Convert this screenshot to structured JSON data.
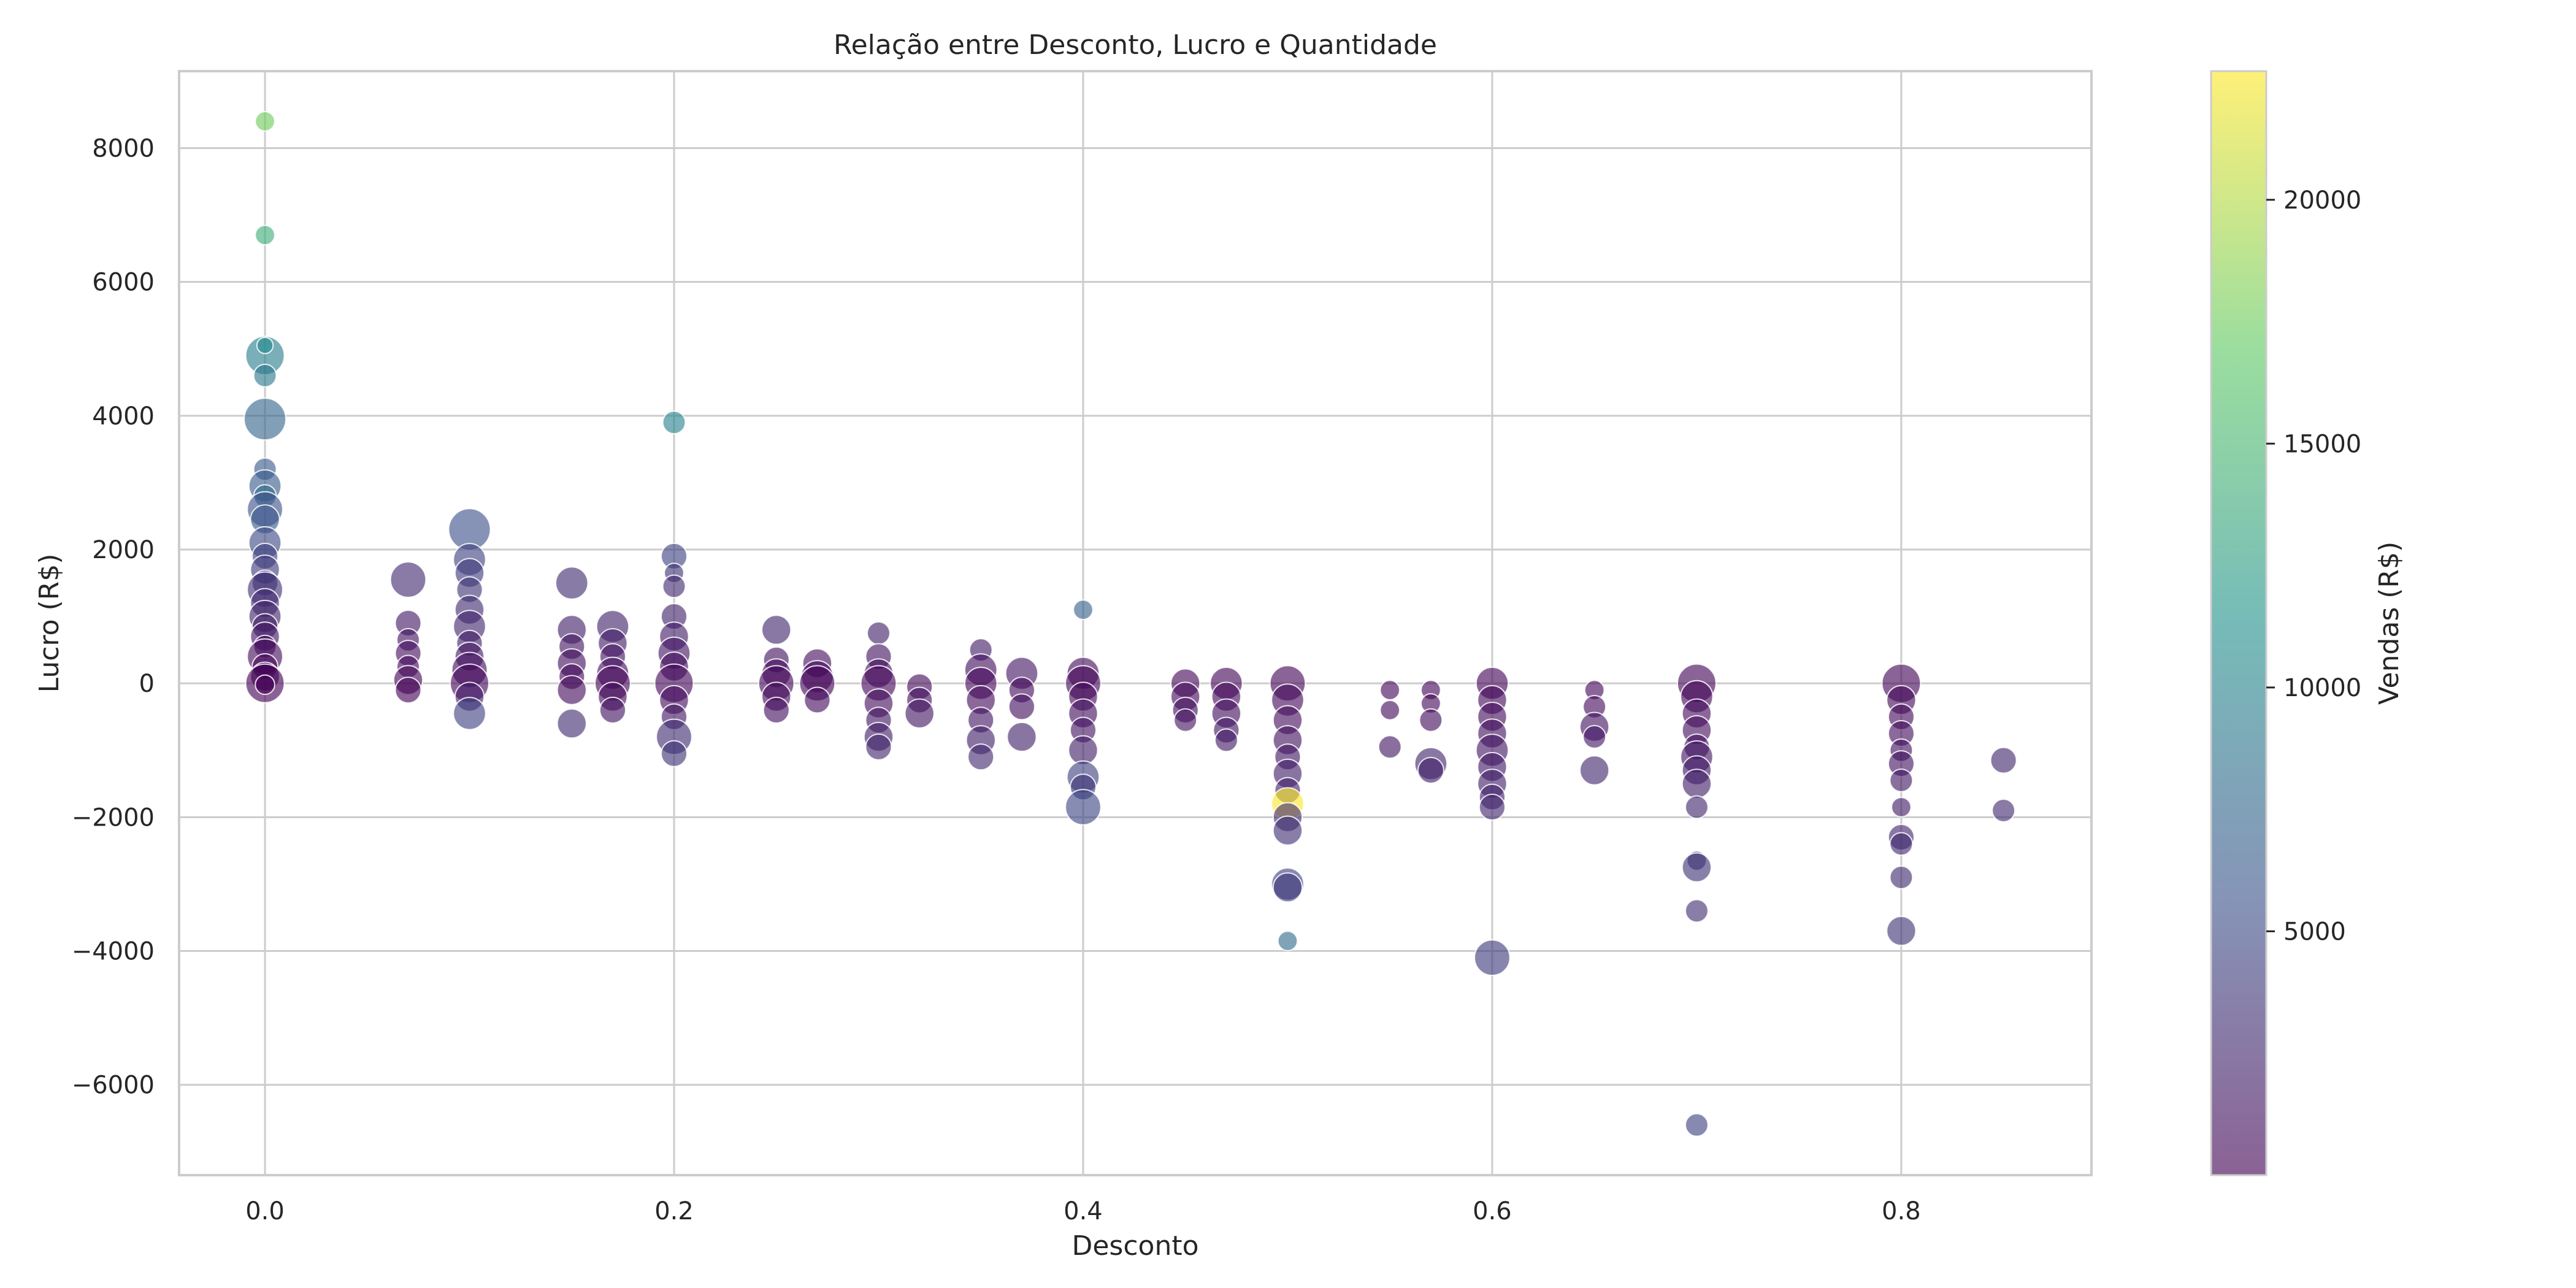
{
  "chart_data": {
    "type": "scatter",
    "title": "Relação entre Desconto, Lucro e Quantidade",
    "xlabel": "Desconto",
    "ylabel": "Lucro (R$)",
    "xlim": [
      -0.042,
      0.893
    ],
    "ylim": [
      -7350,
      9150
    ],
    "xticks": [
      0.0,
      0.2,
      0.4,
      0.6,
      0.8
    ],
    "xtick_labels": [
      "0.0",
      "0.2",
      "0.4",
      "0.6",
      "0.8"
    ],
    "yticks": [
      -6000,
      -4000,
      -2000,
      0,
      2000,
      4000,
      6000,
      8000
    ],
    "ytick_labels": [
      "−6000",
      "−4000",
      "−2000",
      "0",
      "2000",
      "4000",
      "6000",
      "8000"
    ],
    "grid": true,
    "size_encoding": "Quantidade",
    "colorbar": {
      "label": "Vendas (R$)",
      "range": [
        0,
        22638
      ],
      "ticks": [
        5000,
        10000,
        15000,
        20000
      ],
      "tick_labels": [
        "5000",
        "10000",
        "15000",
        "20000"
      ],
      "colormap": "viridis",
      "colors": [
        "#440154",
        "#3b528b",
        "#21918c",
        "#5ec962",
        "#fde725"
      ]
    },
    "points": [
      {
        "x": 0.0,
        "y": 8400,
        "q": 3,
        "c": 17500
      },
      {
        "x": 0.0,
        "y": 6700,
        "q": 3,
        "c": 14000
      },
      {
        "x": 0.0,
        "y": 4900,
        "q": 9,
        "c": 9500
      },
      {
        "x": 0.0,
        "y": 5050,
        "q": 2,
        "c": 11000
      },
      {
        "x": 0.0,
        "y": 4600,
        "q": 4,
        "c": 9000
      },
      {
        "x": 0.0,
        "y": 3950,
        "q": 10,
        "c": 7500
      },
      {
        "x": 0.0,
        "y": 3200,
        "q": 4,
        "c": 6500
      },
      {
        "x": 0.0,
        "y": 2950,
        "q": 7,
        "c": 6500
      },
      {
        "x": 0.0,
        "y": 2800,
        "q": 4,
        "c": 8000
      },
      {
        "x": 0.0,
        "y": 2600,
        "q": 8,
        "c": 5500
      },
      {
        "x": 0.0,
        "y": 2450,
        "q": 6,
        "c": 6000
      },
      {
        "x": 0.0,
        "y": 2100,
        "q": 7,
        "c": 5000
      },
      {
        "x": 0.0,
        "y": 1900,
        "q": 5,
        "c": 4500
      },
      {
        "x": 0.0,
        "y": 1700,
        "q": 6,
        "c": 4000
      },
      {
        "x": 0.0,
        "y": 1500,
        "q": 5,
        "c": 3500
      },
      {
        "x": 0.0,
        "y": 1400,
        "q": 8,
        "c": 3200
      },
      {
        "x": 0.0,
        "y": 1200,
        "q": 6,
        "c": 2800
      },
      {
        "x": 0.0,
        "y": 1000,
        "q": 7,
        "c": 2400
      },
      {
        "x": 0.0,
        "y": 850,
        "q": 5,
        "c": 2000
      },
      {
        "x": 0.0,
        "y": 700,
        "q": 6,
        "c": 1500
      },
      {
        "x": 0.0,
        "y": 550,
        "q": 4,
        "c": 1000
      },
      {
        "x": 0.0,
        "y": 400,
        "q": 8,
        "c": 800
      },
      {
        "x": 0.0,
        "y": 250,
        "q": 5,
        "c": 500
      },
      {
        "x": 0.0,
        "y": 100,
        "q": 6,
        "c": 300
      },
      {
        "x": 0.0,
        "y": 0,
        "q": 9,
        "c": 100
      },
      {
        "x": 0.0,
        "y": -20,
        "q": 3,
        "c": 50
      },
      {
        "x": 0.07,
        "y": 1550,
        "q": 8,
        "c": 2800
      },
      {
        "x": 0.07,
        "y": 900,
        "q": 5,
        "c": 1600
      },
      {
        "x": 0.07,
        "y": 650,
        "q": 4,
        "c": 1300
      },
      {
        "x": 0.07,
        "y": 450,
        "q": 5,
        "c": 900
      },
      {
        "x": 0.07,
        "y": 250,
        "q": 4,
        "c": 600
      },
      {
        "x": 0.07,
        "y": 50,
        "q": 6,
        "c": 300
      },
      {
        "x": 0.07,
        "y": -100,
        "q": 5,
        "c": 200
      },
      {
        "x": 0.1,
        "y": 2300,
        "q": 10,
        "c": 5500
      },
      {
        "x": 0.1,
        "y": 1850,
        "q": 7,
        "c": 4500
      },
      {
        "x": 0.1,
        "y": 1650,
        "q": 6,
        "c": 4000
      },
      {
        "x": 0.1,
        "y": 1400,
        "q": 5,
        "c": 3500
      },
      {
        "x": 0.1,
        "y": 1100,
        "q": 6,
        "c": 3000
      },
      {
        "x": 0.1,
        "y": 850,
        "q": 7,
        "c": 2500
      },
      {
        "x": 0.1,
        "y": 600,
        "q": 5,
        "c": 2000
      },
      {
        "x": 0.1,
        "y": 400,
        "q": 6,
        "c": 1500
      },
      {
        "x": 0.1,
        "y": 200,
        "q": 8,
        "c": 1000
      },
      {
        "x": 0.1,
        "y": 0,
        "q": 9,
        "c": 400
      },
      {
        "x": 0.1,
        "y": -200,
        "q": 6,
        "c": 1800
      },
      {
        "x": 0.1,
        "y": -450,
        "q": 7,
        "c": 4500
      },
      {
        "x": 0.15,
        "y": 1500,
        "q": 7,
        "c": 3000
      },
      {
        "x": 0.15,
        "y": 800,
        "q": 6,
        "c": 2000
      },
      {
        "x": 0.15,
        "y": 550,
        "q": 5,
        "c": 1500
      },
      {
        "x": 0.15,
        "y": 300,
        "q": 6,
        "c": 1000
      },
      {
        "x": 0.15,
        "y": 100,
        "q": 5,
        "c": 600
      },
      {
        "x": 0.15,
        "y": -100,
        "q": 6,
        "c": 800
      },
      {
        "x": 0.15,
        "y": -600,
        "q": 6,
        "c": 3000
      },
      {
        "x": 0.17,
        "y": 850,
        "q": 7,
        "c": 2200
      },
      {
        "x": 0.17,
        "y": 600,
        "q": 6,
        "c": 1800
      },
      {
        "x": 0.17,
        "y": 400,
        "q": 5,
        "c": 1300
      },
      {
        "x": 0.17,
        "y": 150,
        "q": 7,
        "c": 900
      },
      {
        "x": 0.17,
        "y": 0,
        "q": 8,
        "c": 400
      },
      {
        "x": 0.17,
        "y": -200,
        "q": 6,
        "c": 700
      },
      {
        "x": 0.17,
        "y": -400,
        "q": 5,
        "c": 1200
      },
      {
        "x": 0.2,
        "y": 3900,
        "q": 4,
        "c": 10000
      },
      {
        "x": 0.2,
        "y": 1900,
        "q": 5,
        "c": 4500
      },
      {
        "x": 0.2,
        "y": 1650,
        "q": 3,
        "c": 3500
      },
      {
        "x": 0.2,
        "y": 1450,
        "q": 4,
        "c": 2800
      },
      {
        "x": 0.2,
        "y": 1000,
        "q": 5,
        "c": 2200
      },
      {
        "x": 0.2,
        "y": 700,
        "q": 6,
        "c": 1800
      },
      {
        "x": 0.2,
        "y": 450,
        "q": 7,
        "c": 1400
      },
      {
        "x": 0.2,
        "y": 250,
        "q": 6,
        "c": 1000
      },
      {
        "x": 0.2,
        "y": 0,
        "q": 9,
        "c": 400
      },
      {
        "x": 0.2,
        "y": -250,
        "q": 6,
        "c": 800
      },
      {
        "x": 0.2,
        "y": -500,
        "q": 5,
        "c": 1500
      },
      {
        "x": 0.2,
        "y": -800,
        "q": 8,
        "c": 3000
      },
      {
        "x": 0.2,
        "y": -1050,
        "q": 5,
        "c": 3500
      },
      {
        "x": 0.25,
        "y": 800,
        "q": 6,
        "c": 2500
      },
      {
        "x": 0.25,
        "y": 350,
        "q": 5,
        "c": 1200
      },
      {
        "x": 0.25,
        "y": 150,
        "q": 6,
        "c": 800
      },
      {
        "x": 0.25,
        "y": 0,
        "q": 8,
        "c": 400
      },
      {
        "x": 0.25,
        "y": -200,
        "q": 6,
        "c": 700
      },
      {
        "x": 0.25,
        "y": -400,
        "q": 5,
        "c": 1000
      },
      {
        "x": 0.27,
        "y": 300,
        "q": 6,
        "c": 900
      },
      {
        "x": 0.27,
        "y": 100,
        "q": 7,
        "c": 600
      },
      {
        "x": 0.27,
        "y": 0,
        "q": 8,
        "c": 300
      },
      {
        "x": 0.27,
        "y": -250,
        "q": 5,
        "c": 700
      },
      {
        "x": 0.3,
        "y": 750,
        "q": 4,
        "c": 2000
      },
      {
        "x": 0.3,
        "y": 400,
        "q": 5,
        "c": 1200
      },
      {
        "x": 0.3,
        "y": 150,
        "q": 6,
        "c": 800
      },
      {
        "x": 0.3,
        "y": 0,
        "q": 8,
        "c": 400
      },
      {
        "x": 0.3,
        "y": -300,
        "q": 6,
        "c": 900
      },
      {
        "x": 0.3,
        "y": -550,
        "q": 5,
        "c": 1500
      },
      {
        "x": 0.3,
        "y": -800,
        "q": 6,
        "c": 2000
      },
      {
        "x": 0.3,
        "y": -950,
        "q": 5,
        "c": 2500
      },
      {
        "x": 0.32,
        "y": -50,
        "q": 5,
        "c": 500
      },
      {
        "x": 0.32,
        "y": -250,
        "q": 5,
        "c": 1000
      },
      {
        "x": 0.32,
        "y": -450,
        "q": 6,
        "c": 1500
      },
      {
        "x": 0.35,
        "y": 500,
        "q": 4,
        "c": 1800
      },
      {
        "x": 0.35,
        "y": 200,
        "q": 7,
        "c": 1000
      },
      {
        "x": 0.35,
        "y": 0,
        "q": 7,
        "c": 400
      },
      {
        "x": 0.35,
        "y": -250,
        "q": 6,
        "c": 700
      },
      {
        "x": 0.35,
        "y": -550,
        "q": 5,
        "c": 1400
      },
      {
        "x": 0.35,
        "y": -850,
        "q": 6,
        "c": 2000
      },
      {
        "x": 0.35,
        "y": -1100,
        "q": 5,
        "c": 2800
      },
      {
        "x": 0.37,
        "y": 150,
        "q": 7,
        "c": 1500
      },
      {
        "x": 0.37,
        "y": -100,
        "q": 5,
        "c": 800
      },
      {
        "x": 0.37,
        "y": -350,
        "q": 5,
        "c": 1000
      },
      {
        "x": 0.37,
        "y": -800,
        "q": 6,
        "c": 2200
      },
      {
        "x": 0.4,
        "y": 1100,
        "q": 3,
        "c": 7000
      },
      {
        "x": 0.4,
        "y": 150,
        "q": 7,
        "c": 800
      },
      {
        "x": 0.4,
        "y": 0,
        "q": 8,
        "c": 400
      },
      {
        "x": 0.4,
        "y": -200,
        "q": 6,
        "c": 600
      },
      {
        "x": 0.4,
        "y": -450,
        "q": 6,
        "c": 1000
      },
      {
        "x": 0.4,
        "y": -700,
        "q": 5,
        "c": 1300
      },
      {
        "x": 0.4,
        "y": -1000,
        "q": 6,
        "c": 2000
      },
      {
        "x": 0.4,
        "y": -1400,
        "q": 7,
        "c": 4500
      },
      {
        "x": 0.4,
        "y": -1550,
        "q": 5,
        "c": 3500
      },
      {
        "x": 0.4,
        "y": -1850,
        "q": 8,
        "c": 4800
      },
      {
        "x": 0.45,
        "y": 0,
        "q": 6,
        "c": 400
      },
      {
        "x": 0.45,
        "y": -200,
        "q": 6,
        "c": 700
      },
      {
        "x": 0.45,
        "y": -400,
        "q": 5,
        "c": 1000
      },
      {
        "x": 0.45,
        "y": -550,
        "q": 4,
        "c": 1200
      },
      {
        "x": 0.47,
        "y": 0,
        "q": 7,
        "c": 300
      },
      {
        "x": 0.47,
        "y": -200,
        "q": 6,
        "c": 600
      },
      {
        "x": 0.47,
        "y": -450,
        "q": 6,
        "c": 1000
      },
      {
        "x": 0.47,
        "y": -700,
        "q": 5,
        "c": 1400
      },
      {
        "x": 0.47,
        "y": -850,
        "q": 4,
        "c": 1600
      },
      {
        "x": 0.5,
        "y": 0,
        "q": 8,
        "c": 300
      },
      {
        "x": 0.5,
        "y": -250,
        "q": 7,
        "c": 600
      },
      {
        "x": 0.5,
        "y": -550,
        "q": 6,
        "c": 900
      },
      {
        "x": 0.5,
        "y": -850,
        "q": 6,
        "c": 1200
      },
      {
        "x": 0.5,
        "y": -1100,
        "q": 5,
        "c": 1500
      },
      {
        "x": 0.5,
        "y": -1350,
        "q": 6,
        "c": 2000
      },
      {
        "x": 0.5,
        "y": -1600,
        "q": 5,
        "c": 2500
      },
      {
        "x": 0.5,
        "y": -1800,
        "q": 7,
        "c": 22600
      },
      {
        "x": 0.5,
        "y": -2000,
        "q": 6,
        "c": 3000
      },
      {
        "x": 0.5,
        "y": -2200,
        "q": 6,
        "c": 3200
      },
      {
        "x": 0.5,
        "y": -3000,
        "q": 7,
        "c": 4500
      },
      {
        "x": 0.5,
        "y": -3050,
        "q": 6,
        "c": 3800
      },
      {
        "x": 0.5,
        "y": -3850,
        "q": 3,
        "c": 8000
      },
      {
        "x": 0.55,
        "y": -100,
        "q": 3,
        "c": 400
      },
      {
        "x": 0.55,
        "y": -400,
        "q": 3,
        "c": 600
      },
      {
        "x": 0.55,
        "y": -950,
        "q": 4,
        "c": 1500
      },
      {
        "x": 0.57,
        "y": -100,
        "q": 3,
        "c": 300
      },
      {
        "x": 0.57,
        "y": -300,
        "q": 3,
        "c": 500
      },
      {
        "x": 0.57,
        "y": -550,
        "q": 4,
        "c": 800
      },
      {
        "x": 0.57,
        "y": -1200,
        "q": 7,
        "c": 2500
      },
      {
        "x": 0.57,
        "y": -1300,
        "q": 5,
        "c": 2000
      },
      {
        "x": 0.6,
        "y": 0,
        "q": 7,
        "c": 300
      },
      {
        "x": 0.6,
        "y": -250,
        "q": 6,
        "c": 500
      },
      {
        "x": 0.6,
        "y": -500,
        "q": 6,
        "c": 800
      },
      {
        "x": 0.6,
        "y": -750,
        "q": 6,
        "c": 1100
      },
      {
        "x": 0.6,
        "y": -1000,
        "q": 7,
        "c": 1400
      },
      {
        "x": 0.6,
        "y": -1250,
        "q": 6,
        "c": 1700
      },
      {
        "x": 0.6,
        "y": -1500,
        "q": 6,
        "c": 2000
      },
      {
        "x": 0.6,
        "y": -1700,
        "q": 5,
        "c": 2300
      },
      {
        "x": 0.6,
        "y": -1850,
        "q": 5,
        "c": 2500
      },
      {
        "x": 0.6,
        "y": -4100,
        "q": 8,
        "c": 4000
      },
      {
        "x": 0.65,
        "y": -100,
        "q": 3,
        "c": 400
      },
      {
        "x": 0.65,
        "y": -350,
        "q": 4,
        "c": 700
      },
      {
        "x": 0.65,
        "y": -650,
        "q": 6,
        "c": 1300
      },
      {
        "x": 0.65,
        "y": -800,
        "q": 4,
        "c": 1500
      },
      {
        "x": 0.65,
        "y": -1300,
        "q": 6,
        "c": 2500
      },
      {
        "x": 0.7,
        "y": 0,
        "q": 9,
        "c": 300
      },
      {
        "x": 0.7,
        "y": -200,
        "q": 7,
        "c": 500
      },
      {
        "x": 0.7,
        "y": -450,
        "q": 6,
        "c": 700
      },
      {
        "x": 0.7,
        "y": -700,
        "q": 6,
        "c": 900
      },
      {
        "x": 0.7,
        "y": -950,
        "q": 5,
        "c": 1200
      },
      {
        "x": 0.7,
        "y": -1100,
        "q": 7,
        "c": 1400
      },
      {
        "x": 0.7,
        "y": -1300,
        "q": 6,
        "c": 1700
      },
      {
        "x": 0.7,
        "y": -1500,
        "q": 6,
        "c": 2000
      },
      {
        "x": 0.7,
        "y": -1850,
        "q": 4,
        "c": 2500
      },
      {
        "x": 0.7,
        "y": -2650,
        "q": 3,
        "c": 3000
      },
      {
        "x": 0.7,
        "y": -2750,
        "q": 6,
        "c": 3500
      },
      {
        "x": 0.7,
        "y": -3400,
        "q": 4,
        "c": 3200
      },
      {
        "x": 0.7,
        "y": -6600,
        "q": 4,
        "c": 4500
      },
      {
        "x": 0.8,
        "y": 0,
        "q": 9,
        "c": 300
      },
      {
        "x": 0.8,
        "y": -250,
        "q": 6,
        "c": 500
      },
      {
        "x": 0.8,
        "y": -500,
        "q": 5,
        "c": 700
      },
      {
        "x": 0.8,
        "y": -750,
        "q": 5,
        "c": 900
      },
      {
        "x": 0.8,
        "y": -1000,
        "q": 4,
        "c": 1100
      },
      {
        "x": 0.8,
        "y": -1200,
        "q": 5,
        "c": 1300
      },
      {
        "x": 0.8,
        "y": -1450,
        "q": 4,
        "c": 1600
      },
      {
        "x": 0.8,
        "y": -1850,
        "q": 3,
        "c": 1900
      },
      {
        "x": 0.8,
        "y": -2300,
        "q": 5,
        "c": 2500
      },
      {
        "x": 0.8,
        "y": -2400,
        "q": 4,
        "c": 2800
      },
      {
        "x": 0.8,
        "y": -2900,
        "q": 4,
        "c": 3000
      },
      {
        "x": 0.8,
        "y": -3700,
        "q": 6,
        "c": 3500
      },
      {
        "x": 0.85,
        "y": -1150,
        "q": 5,
        "c": 2500
      },
      {
        "x": 0.85,
        "y": -1900,
        "q": 4,
        "c": 2800
      }
    ]
  }
}
